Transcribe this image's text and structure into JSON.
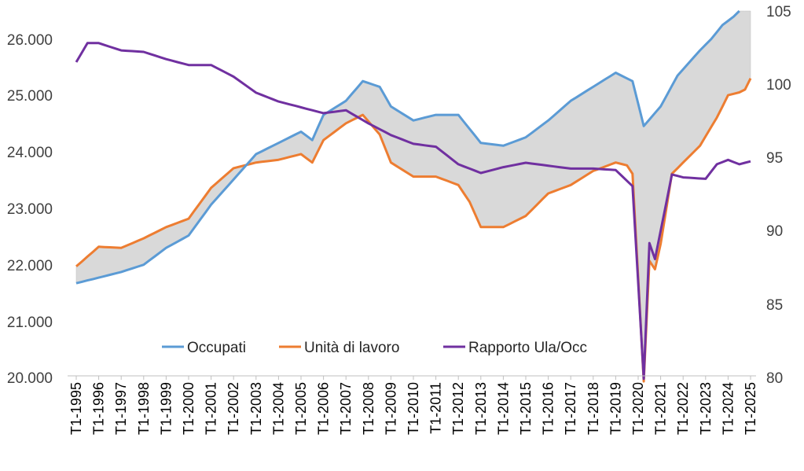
{
  "chart_data": {
    "type": "line",
    "title": "",
    "colors": {
      "occupati": "#5B9BD5",
      "unita": "#ED7D31",
      "rapporto": "#7030A0",
      "gap_fill": "#D9D9D9"
    },
    "y_left": {
      "lim": [
        20000,
        26500
      ],
      "ticks": [
        20000,
        21000,
        22000,
        23000,
        24000,
        25000,
        26000
      ],
      "tick_labels": [
        "20.000",
        "21.000",
        "22.000",
        "23.000",
        "24.000",
        "25.000",
        "26.000"
      ]
    },
    "y_right": {
      "lim": [
        80,
        105
      ],
      "ticks": [
        80,
        85,
        90,
        95,
        100,
        105
      ],
      "tick_labels": [
        "80",
        "85",
        "90",
        "95",
        "100",
        "105"
      ]
    },
    "x_tick_labels": [
      "T1-1995",
      "T1-1996",
      "T1-1997",
      "T1-1998",
      "T1-1999",
      "T1-2000",
      "T1-2001",
      "T1-2002",
      "T1-2003",
      "T1-2004",
      "T1-2005",
      "T1-2006",
      "T1-2007",
      "T1-2008",
      "T1-2009",
      "T1-2010",
      "T1-2011",
      "T1-2012",
      "T1-2013",
      "T1-2014",
      "T1-2015",
      "T1-2016",
      "T1-2017",
      "T1-2018",
      "T1-2019",
      "T1-2020",
      "T1-2021",
      "T1-2022",
      "T1-2023",
      "T1-2024",
      "T1-2025"
    ],
    "x_start_year": 1995,
    "quarters_per_year": 4,
    "grid": false,
    "legend_position": "bottom-center",
    "series": [
      {
        "name": "Occupati",
        "axis": "left",
        "knots": [
          [
            1995,
            21650
          ],
          [
            1996,
            21750
          ],
          [
            1997,
            21850
          ],
          [
            1998,
            21980
          ],
          [
            1999,
            22280
          ],
          [
            2000,
            22500
          ],
          [
            2001,
            23050
          ],
          [
            2002,
            23500
          ],
          [
            2003,
            23950
          ],
          [
            2004,
            24150
          ],
          [
            2005,
            24350
          ],
          [
            2005.5,
            24200
          ],
          [
            2006,
            24650
          ],
          [
            2007,
            24900
          ],
          [
            2007.75,
            25250
          ],
          [
            2008.5,
            25150
          ],
          [
            2009,
            24800
          ],
          [
            2010,
            24550
          ],
          [
            2011,
            24650
          ],
          [
            2012,
            24650
          ],
          [
            2013,
            24150
          ],
          [
            2014,
            24100
          ],
          [
            2015,
            24250
          ],
          [
            2016,
            24550
          ],
          [
            2017,
            24900
          ],
          [
            2018,
            25150
          ],
          [
            2019,
            25400
          ],
          [
            2019.75,
            25250
          ],
          [
            2020.25,
            24450
          ],
          [
            2021,
            24800
          ],
          [
            2021.75,
            25350
          ],
          [
            2022.75,
            25800
          ],
          [
            2023.25,
            26000
          ],
          [
            2023.75,
            26250
          ],
          [
            2024.25,
            26400
          ],
          [
            2024.5,
            26500
          ]
        ]
      },
      {
        "name": "Unità di lavoro",
        "axis": "left",
        "knots": [
          [
            1995,
            21950
          ],
          [
            1996,
            22300
          ],
          [
            1997,
            22280
          ],
          [
            1998,
            22450
          ],
          [
            1999,
            22650
          ],
          [
            2000,
            22800
          ],
          [
            2001,
            23350
          ],
          [
            2002,
            23700
          ],
          [
            2003,
            23800
          ],
          [
            2004,
            23850
          ],
          [
            2005,
            23950
          ],
          [
            2005.5,
            23800
          ],
          [
            2006,
            24200
          ],
          [
            2007,
            24500
          ],
          [
            2007.75,
            24650
          ],
          [
            2008.5,
            24300
          ],
          [
            2009,
            23800
          ],
          [
            2010,
            23550
          ],
          [
            2011,
            23550
          ],
          [
            2012,
            23400
          ],
          [
            2012.5,
            23100
          ],
          [
            2013,
            22650
          ],
          [
            2014,
            22650
          ],
          [
            2015,
            22850
          ],
          [
            2016,
            23250
          ],
          [
            2017,
            23400
          ],
          [
            2018,
            23650
          ],
          [
            2019,
            23800
          ],
          [
            2019.5,
            23750
          ],
          [
            2019.75,
            23600
          ],
          [
            2020.25,
            19900
          ],
          [
            2020.5,
            22050
          ],
          [
            2020.75,
            21900
          ],
          [
            2021,
            22350
          ],
          [
            2021.5,
            23600
          ],
          [
            2022,
            23800
          ],
          [
            2022.75,
            24100
          ],
          [
            2023.5,
            24600
          ],
          [
            2024,
            25000
          ],
          [
            2024.5,
            25050
          ],
          [
            2024.75,
            25100
          ],
          [
            2025,
            25300
          ]
        ]
      },
      {
        "name": "Rapporto Ula/Occ",
        "axis": "right",
        "knots": [
          [
            1995,
            101.5
          ],
          [
            1995.5,
            102.8
          ],
          [
            1996,
            102.8
          ],
          [
            1997,
            102.3
          ],
          [
            1998,
            102.2
          ],
          [
            1999,
            101.7
          ],
          [
            2000,
            101.3
          ],
          [
            2001,
            101.3
          ],
          [
            2002,
            100.5
          ],
          [
            2003,
            99.4
          ],
          [
            2004,
            98.8
          ],
          [
            2005,
            98.4
          ],
          [
            2006,
            98.0
          ],
          [
            2007,
            98.2
          ],
          [
            2008,
            97.3
          ],
          [
            2009,
            96.5
          ],
          [
            2010,
            95.9
          ],
          [
            2011,
            95.7
          ],
          [
            2012,
            94.5
          ],
          [
            2013,
            93.9
          ],
          [
            2014,
            94.3
          ],
          [
            2015,
            94.6
          ],
          [
            2016,
            94.4
          ],
          [
            2017,
            94.2
          ],
          [
            2018,
            94.2
          ],
          [
            2019,
            94.1
          ],
          [
            2019.75,
            93.0
          ],
          [
            2020.25,
            79.8
          ],
          [
            2020.5,
            89.1
          ],
          [
            2020.75,
            88.0
          ],
          [
            2021.5,
            93.8
          ],
          [
            2022,
            93.6
          ],
          [
            2023,
            93.5
          ],
          [
            2023.5,
            94.5
          ],
          [
            2024,
            94.8
          ],
          [
            2024.5,
            94.5
          ],
          [
            2024.75,
            94.6
          ],
          [
            2025,
            94.7
          ]
        ]
      }
    ]
  }
}
